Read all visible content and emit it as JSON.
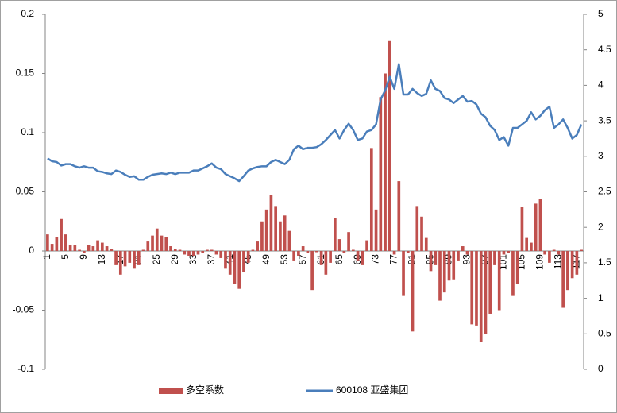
{
  "chart_data": {
    "type": "bar-line",
    "categories": [
      "1",
      null,
      null,
      null,
      "5",
      null,
      null,
      null,
      "9",
      null,
      null,
      null,
      "13",
      null,
      null,
      null,
      "17",
      null,
      null,
      null,
      "21",
      null,
      null,
      null,
      "25",
      null,
      null,
      null,
      "29",
      null,
      null,
      null,
      "33",
      null,
      null,
      null,
      "37",
      null,
      null,
      null,
      "41",
      null,
      null,
      null,
      "45",
      null,
      null,
      null,
      "49",
      null,
      null,
      null,
      "53",
      null,
      null,
      null,
      "57",
      null,
      null,
      null,
      "61",
      null,
      null,
      null,
      "65",
      null,
      null,
      null,
      "69",
      null,
      null,
      null,
      "73",
      null,
      null,
      null,
      "77",
      null,
      null,
      null,
      "81",
      null,
      null,
      null,
      "85",
      null,
      null,
      null,
      "89",
      null,
      null,
      null,
      "93",
      null,
      null,
      null,
      "97",
      null,
      null,
      null,
      "101",
      null,
      null,
      null,
      "105",
      null,
      null,
      null,
      "109",
      null,
      null,
      null,
      "113",
      null,
      null,
      null,
      "117",
      null
    ],
    "series": [
      {
        "name": "多空系数",
        "type": "bar",
        "color": "#c0504d",
        "axis": "y",
        "values": [
          0.014,
          0.006,
          0.012,
          0.027,
          0.014,
          0.005,
          0.005,
          0.001,
          -0.002,
          0.005,
          0.004,
          0.009,
          0.007,
          0.004,
          0.002,
          -0.012,
          -0.02,
          -0.013,
          -0.01,
          -0.015,
          -0.012,
          0.001,
          0.008,
          0.013,
          0.019,
          0.013,
          0.012,
          0.004,
          0.002,
          0.001,
          -0.003,
          -0.004,
          -0.004,
          -0.003,
          -0.002,
          0.001,
          0.001,
          -0.003,
          -0.006,
          -0.015,
          -0.02,
          -0.028,
          -0.032,
          -0.018,
          -0.01,
          0.001,
          0.008,
          0.025,
          0.035,
          0.047,
          0.038,
          0.025,
          0.03,
          0.017,
          -0.008,
          -0.004,
          0.004,
          -0.002,
          -0.033,
          -0.001,
          -0.012,
          -0.02,
          -0.01,
          0.028,
          0.01,
          -0.002,
          0.016,
          0.001,
          -0.008,
          -0.012,
          0.009,
          0.087,
          0.035,
          0.13,
          0.15,
          0.178,
          -0.003,
          0.059,
          -0.038,
          -0.002,
          -0.068,
          0.038,
          0.029,
          0.011,
          -0.017,
          -0.012,
          -0.042,
          -0.035,
          -0.025,
          -0.024,
          -0.008,
          0.004,
          -0.003,
          -0.062,
          -0.063,
          -0.077,
          -0.07,
          -0.053,
          -0.012,
          -0.05,
          -0.003,
          -0.002,
          -0.038,
          -0.028,
          0.037,
          0.011,
          0.007,
          0.04,
          0.044,
          -0.003,
          -0.01,
          0.001,
          -0.003,
          -0.048,
          -0.033,
          -0.023,
          -0.02,
          0.001
        ]
      },
      {
        "name": "600108 亚盛集团",
        "type": "line",
        "color": "#4a7ebb",
        "axis": "y2",
        "values": [
          2.97,
          2.93,
          2.92,
          2.87,
          2.89,
          2.89,
          2.86,
          2.84,
          2.86,
          2.84,
          2.84,
          2.79,
          2.78,
          2.76,
          2.75,
          2.8,
          2.78,
          2.74,
          2.71,
          2.72,
          2.67,
          2.67,
          2.71,
          2.74,
          2.75,
          2.76,
          2.75,
          2.77,
          2.75,
          2.77,
          2.77,
          2.77,
          2.8,
          2.8,
          2.83,
          2.86,
          2.9,
          2.84,
          2.82,
          2.75,
          2.72,
          2.69,
          2.65,
          2.72,
          2.8,
          2.83,
          2.85,
          2.86,
          2.86,
          2.92,
          2.95,
          2.92,
          2.89,
          2.95,
          3.1,
          3.15,
          3.1,
          3.12,
          3.12,
          3.13,
          3.17,
          3.23,
          3.3,
          3.37,
          3.25,
          3.37,
          3.46,
          3.37,
          3.23,
          3.25,
          3.35,
          3.37,
          3.45,
          3.8,
          3.93,
          4.12,
          3.95,
          4.3,
          3.87,
          3.87,
          3.95,
          3.89,
          3.85,
          3.88,
          4.07,
          3.95,
          3.92,
          3.82,
          3.8,
          3.75,
          3.8,
          3.85,
          3.77,
          3.78,
          3.73,
          3.6,
          3.55,
          3.43,
          3.37,
          3.23,
          3.27,
          3.15,
          3.4,
          3.4,
          3.45,
          3.5,
          3.62,
          3.52,
          3.57,
          3.65,
          3.7,
          3.4,
          3.45,
          3.52,
          3.4,
          3.25,
          3.3,
          3.45
        ]
      }
    ],
    "ylim": [
      -0.1,
      0.2
    ],
    "yticks": [
      -0.1,
      -0.05,
      0,
      0.05,
      0.1,
      0.15,
      0.2
    ],
    "y2lim": [
      0,
      5
    ],
    "y2ticks": [
      0,
      0.5,
      1,
      1.5,
      2,
      2.5,
      3,
      3.5,
      4,
      4.5,
      5
    ],
    "legend": "bottom"
  }
}
